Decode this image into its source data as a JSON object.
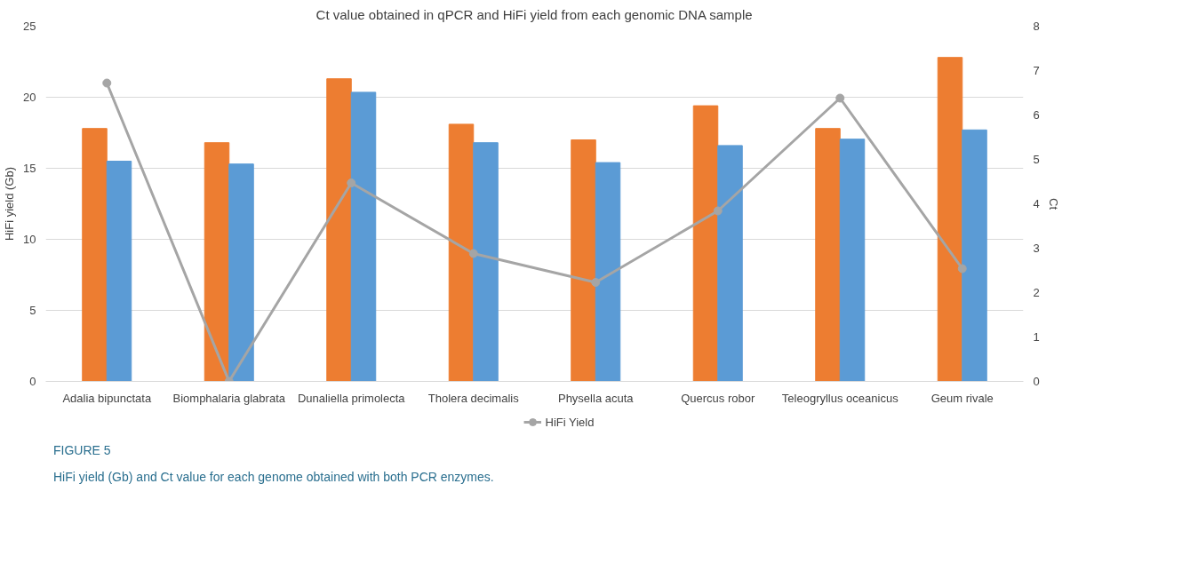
{
  "chart_data": {
    "type": "bar",
    "title": "Ct value obtained in qPCR and HiFi yield from each genomic DNA sample",
    "categories": [
      "Adalia bipunctata",
      "Biomphalaria glabrata",
      "Dunaliella primolecta",
      "Tholera decimalis",
      "Physella acuta",
      "Quercus robor",
      "Teleogryllus oceanicus",
      "Geum rivale"
    ],
    "series": [
      {
        "color": "#ed7d31",
        "values": [
          17.8,
          16.8,
          21.3,
          18.1,
          17.0,
          19.4,
          17.8,
          22.8
        ]
      },
      {
        "color": "#5b9bd5",
        "values": [
          15.5,
          15.3,
          20.35,
          16.8,
          15.4,
          16.6,
          17.05,
          17.7
        ]
      },
      {
        "name": "HiFi Yield",
        "type": "line",
        "axis": "y2",
        "color": "#a5a5a5",
        "marker": "circle",
        "values": [
          6.72,
          0,
          4.47,
          2.88,
          2.23,
          3.84,
          6.38,
          2.54
        ]
      }
    ],
    "ylabel": "HiFi yield (Gb)",
    "y2label": "Ct",
    "ylim": [
      0,
      25
    ],
    "yticks": [
      0,
      5,
      10,
      15,
      20,
      25
    ],
    "y2lim": [
      0,
      8
    ],
    "y2ticks": [
      0,
      1,
      2,
      3,
      4,
      5,
      6,
      7,
      8
    ],
    "grid": "y",
    "legend": "bottom",
    "annotations": [
      "FIGURE 5",
      "HiFi yield (Gb) and Ct value for each genome obtained with both PCR enzymes."
    ]
  }
}
